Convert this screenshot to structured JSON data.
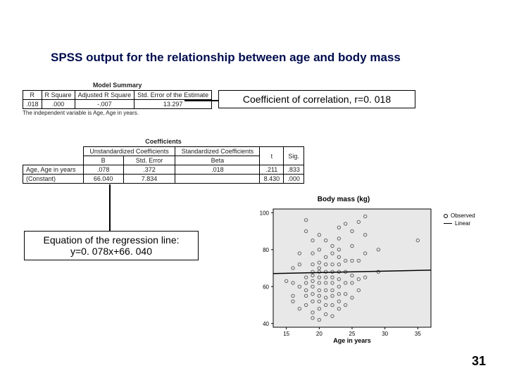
{
  "title": "SPSS output for the relationship between age and body mass",
  "model_summary": {
    "title": "Model Summary",
    "columns": [
      "R",
      "R Square",
      "Adjusted R Square",
      "Std. Error of the Estimate"
    ],
    "row": [
      ".018",
      ".000",
      "-.007",
      "13.297"
    ],
    "footnote": "The independent variable is Age, Age in years."
  },
  "coefficients": {
    "title": "Coefficients",
    "group1": "Unstandardized Coefficients",
    "group2": "Standardized Coefficients",
    "cols": [
      "B",
      "Std. Error",
      "Beta",
      "t",
      "Sig."
    ],
    "rows": [
      {
        "label": "Age, Age in years",
        "vals": [
          ".078",
          ".372",
          ".018",
          ".211",
          ".833"
        ]
      },
      {
        "label": "(Constant)",
        "vals": [
          "66.040",
          "7.834",
          "",
          "8.430",
          ".000"
        ]
      }
    ]
  },
  "callouts": {
    "correlation": "Coefficient of correlation, r=0. 018",
    "equation_l1": "Equation of the regression line:",
    "equation_l2": "y=0. 078x+66. 040"
  },
  "scatter": {
    "title": "Body mass (kg)",
    "xlabel": "Age in years",
    "xlim": [
      13,
      37
    ],
    "ylim": [
      38,
      102
    ],
    "xticks": [
      15,
      20,
      25,
      30,
      35
    ],
    "yticks": [
      40,
      60,
      80,
      100
    ],
    "plot_bg": "#e8e8e8",
    "axis_color": "#000000",
    "grid_color": "#999999",
    "point_color": "#555555",
    "line_color": "#000000",
    "regression": {
      "slope": 0.078,
      "intercept": 66.04
    },
    "points": [
      [
        15,
        63
      ],
      [
        16,
        55
      ],
      [
        16,
        52
      ],
      [
        16,
        62
      ],
      [
        16,
        70
      ],
      [
        17,
        48
      ],
      [
        17,
        60
      ],
      [
        17,
        72
      ],
      [
        17,
        78
      ],
      [
        18,
        50
      ],
      [
        18,
        55
      ],
      [
        18,
        58
      ],
      [
        18,
        62
      ],
      [
        18,
        65
      ],
      [
        18,
        90
      ],
      [
        18,
        96
      ],
      [
        19,
        43
      ],
      [
        19,
        46
      ],
      [
        19,
        52
      ],
      [
        19,
        56
      ],
      [
        19,
        60
      ],
      [
        19,
        63
      ],
      [
        19,
        66
      ],
      [
        19,
        68
      ],
      [
        19,
        72
      ],
      [
        19,
        78
      ],
      [
        19,
        85
      ],
      [
        20,
        42
      ],
      [
        20,
        48
      ],
      [
        20,
        52
      ],
      [
        20,
        55
      ],
      [
        20,
        58
      ],
      [
        20,
        62
      ],
      [
        20,
        65
      ],
      [
        20,
        68
      ],
      [
        20,
        70
      ],
      [
        20,
        73
      ],
      [
        20,
        80
      ],
      [
        20,
        88
      ],
      [
        21,
        45
      ],
      [
        21,
        50
      ],
      [
        21,
        54
      ],
      [
        21,
        58
      ],
      [
        21,
        62
      ],
      [
        21,
        65
      ],
      [
        21,
        68
      ],
      [
        21,
        72
      ],
      [
        21,
        76
      ],
      [
        21,
        85
      ],
      [
        22,
        44
      ],
      [
        22,
        50
      ],
      [
        22,
        55
      ],
      [
        22,
        58
      ],
      [
        22,
        62
      ],
      [
        22,
        65
      ],
      [
        22,
        68
      ],
      [
        22,
        72
      ],
      [
        22,
        78
      ],
      [
        22,
        82
      ],
      [
        23,
        48
      ],
      [
        23,
        52
      ],
      [
        23,
        56
      ],
      [
        23,
        60
      ],
      [
        23,
        64
      ],
      [
        23,
        68
      ],
      [
        23,
        72
      ],
      [
        23,
        76
      ],
      [
        23,
        80
      ],
      [
        23,
        86
      ],
      [
        23,
        92
      ],
      [
        24,
        50
      ],
      [
        24,
        56
      ],
      [
        24,
        62
      ],
      [
        24,
        68
      ],
      [
        24,
        74
      ],
      [
        24,
        94
      ],
      [
        25,
        54
      ],
      [
        25,
        62
      ],
      [
        25,
        66
      ],
      [
        25,
        74
      ],
      [
        25,
        82
      ],
      [
        25,
        90
      ],
      [
        26,
        58
      ],
      [
        26,
        64
      ],
      [
        26,
        74
      ],
      [
        26,
        95
      ],
      [
        27,
        65
      ],
      [
        27,
        78
      ],
      [
        27,
        88
      ],
      [
        27,
        98
      ],
      [
        29,
        68
      ],
      [
        29,
        80
      ],
      [
        35,
        85
      ]
    ],
    "legend": {
      "observed": "Observed",
      "linear": "Linear"
    }
  },
  "page_number": "31"
}
